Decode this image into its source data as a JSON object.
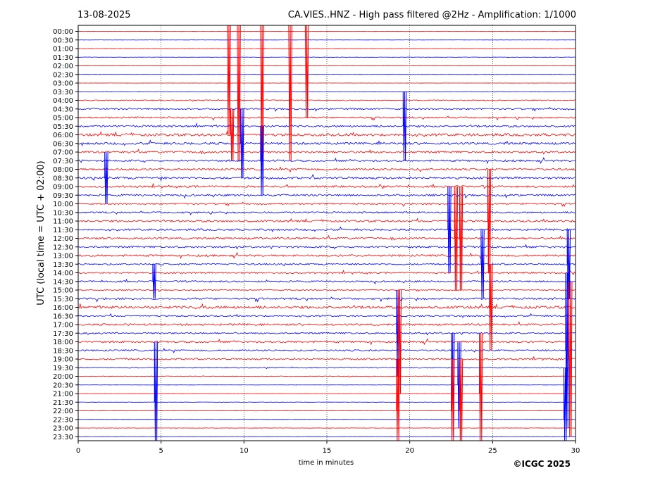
{
  "header": {
    "date": "13-08-2025",
    "title": "CA.VIES..HNZ - High pass filtered @2Hz - Amplification: 1/1000"
  },
  "footer": {
    "copyright": "©ICGC 2025"
  },
  "colors": {
    "trace_a": "#ff0000",
    "trace_b": "#0000ff",
    "axes": "#000000"
  },
  "chart_data": {
    "type": "line",
    "xlabel": "time in minutes",
    "ylabel": "UTC (local time = UTC + 02:00)",
    "xlim": [
      0,
      30
    ],
    "x_ticks": [
      "0",
      "5",
      "10",
      "15",
      "20",
      "25",
      "30"
    ],
    "grid": "vertical dotted at 5, 10, 15, 20, 25",
    "rows": [
      "00:00",
      "00:30",
      "01:00",
      "01:30",
      "02:00",
      "02:30",
      "03:00",
      "03:30",
      "04:00",
      "04:30",
      "05:00",
      "05:30",
      "06:00",
      "06:30",
      "07:00",
      "07:30",
      "08:00",
      "08:30",
      "09:00",
      "09:30",
      "10:00",
      "10:30",
      "11:00",
      "11:30",
      "12:00",
      "12:30",
      "13:00",
      "13:30",
      "14:00",
      "14:30",
      "15:00",
      "15:30",
      "16:00",
      "16:30",
      "17:00",
      "17:30",
      "18:00",
      "18:30",
      "19:00",
      "19:30",
      "20:00",
      "20:30",
      "21:00",
      "21:30",
      "22:00",
      "22:30",
      "23:00",
      "23:30"
    ],
    "row_colors": [
      "red",
      "blue",
      "red",
      "blue",
      "red",
      "blue",
      "red",
      "blue",
      "red",
      "blue",
      "red",
      "blue",
      "red",
      "blue",
      "red",
      "blue",
      "red",
      "blue",
      "red",
      "blue",
      "red",
      "blue",
      "red",
      "blue",
      "red",
      "blue",
      "red",
      "blue",
      "red",
      "blue",
      "red",
      "blue",
      "red",
      "blue",
      "red",
      "blue",
      "red",
      "blue",
      "red",
      "blue",
      "red",
      "blue",
      "red",
      "blue",
      "red",
      "blue",
      "red",
      "blue"
    ],
    "noise_level": [
      0.1,
      0.05,
      0.1,
      0.1,
      0.05,
      0.05,
      0.05,
      0.1,
      0.3,
      0.5,
      0.5,
      0.6,
      0.8,
      0.7,
      0.6,
      0.6,
      0.6,
      0.7,
      0.6,
      0.6,
      0.5,
      0.5,
      0.6,
      0.6,
      0.6,
      0.6,
      0.6,
      0.5,
      0.5,
      0.5,
      0.3,
      0.6,
      0.8,
      0.5,
      0.6,
      0.5,
      0.6,
      0.5,
      0.5,
      0.3,
      0.2,
      0.05,
      0.1,
      0.1,
      0.1,
      0.05,
      0.1,
      0.05
    ],
    "spikes": [
      {
        "row": "00:00",
        "x": 9.0,
        "amp": 12
      },
      {
        "row": "00:00",
        "x": 9.6,
        "amp": 15
      },
      {
        "row": "00:00",
        "x": 11.0,
        "amp": 15
      },
      {
        "row": "00:00",
        "x": 12.7,
        "amp": 15
      },
      {
        "row": "00:00",
        "x": 13.7,
        "amp": 10
      },
      {
        "row": "05:30",
        "x": 19.6,
        "amp": 4
      },
      {
        "row": "06:00",
        "x": 9.2,
        "amp": 3
      },
      {
        "row": "06:30",
        "x": 9.8,
        "amp": 4
      },
      {
        "row": "07:30",
        "x": 11.0,
        "amp": 4
      },
      {
        "row": "08:30",
        "x": 1.6,
        "amp": 3
      },
      {
        "row": "11:00",
        "x": 24.7,
        "amp": 6
      },
      {
        "row": "11:30",
        "x": 22.3,
        "amp": 5
      },
      {
        "row": "12:00",
        "x": 22.7,
        "amp": 6
      },
      {
        "row": "12:00",
        "x": 23.0,
        "amp": 6
      },
      {
        "row": "13:30",
        "x": 24.3,
        "amp": 4
      },
      {
        "row": "13:30",
        "x": 29.5,
        "amp": 4
      },
      {
        "row": "14:30",
        "x": 4.5,
        "amp": 2
      },
      {
        "row": "16:00",
        "x": 24.8,
        "amp": 5
      },
      {
        "row": "17:30",
        "x": 19.2,
        "amp": 5
      },
      {
        "row": "18:00",
        "x": 19.3,
        "amp": 6
      },
      {
        "row": "18:30",
        "x": 29.4,
        "amp": 9
      },
      {
        "row": "19:00",
        "x": 29.6,
        "amp": 9
      },
      {
        "row": "20:30",
        "x": 22.5,
        "amp": 6
      },
      {
        "row": "20:30",
        "x": 22.9,
        "amp": 5
      },
      {
        "row": "21:00",
        "x": 24.2,
        "amp": 7
      },
      {
        "row": "21:30",
        "x": 4.6,
        "amp": 7
      },
      {
        "row": "22:00",
        "x": 19.2,
        "amp": 6
      },
      {
        "row": "22:00",
        "x": 22.5,
        "amp": 6
      },
      {
        "row": "22:00",
        "x": 23.0,
        "amp": 6
      },
      {
        "row": "22:30",
        "x": 29.3,
        "amp": 6
      }
    ]
  }
}
